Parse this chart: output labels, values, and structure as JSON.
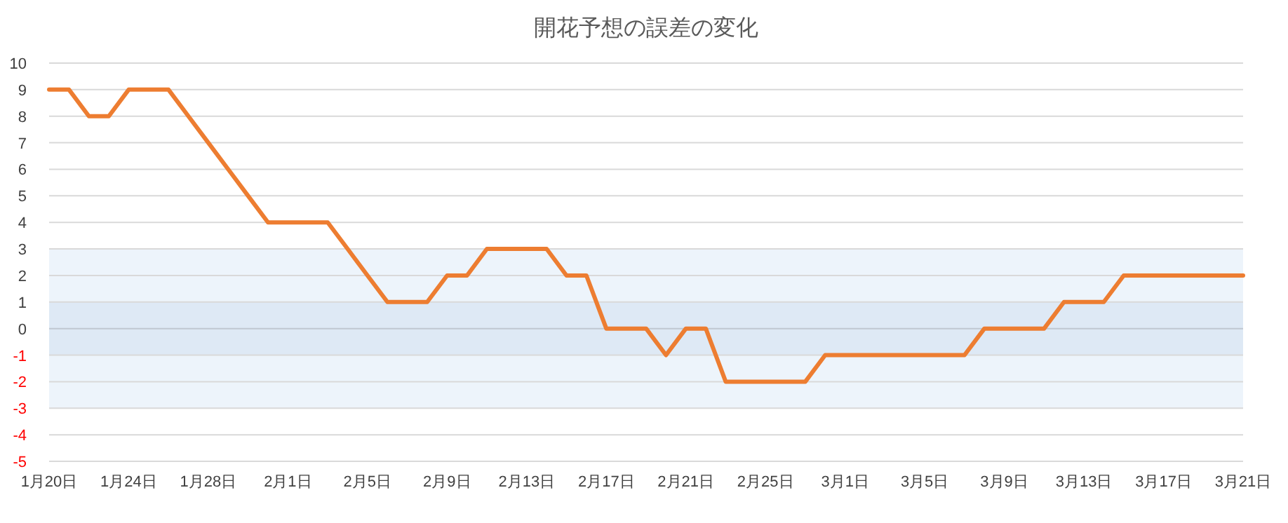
{
  "chart_data": {
    "type": "line",
    "title": "開花予想の誤差の変化",
    "x": [
      "--01-20",
      "--01-21",
      "--01-22",
      "--01-23",
      "--01-24",
      "--01-25",
      "--01-26",
      "--01-27",
      "--01-28",
      "--01-29",
      "--01-30",
      "--01-31",
      "--02-01",
      "--02-02",
      "--02-03",
      "--02-04",
      "--02-05",
      "--02-06",
      "--02-07",
      "--02-08",
      "--02-09",
      "--02-10",
      "--02-11",
      "--02-12",
      "--02-13",
      "--02-14",
      "--02-15",
      "--02-16",
      "--02-17",
      "--02-18",
      "--02-19",
      "--02-20",
      "--02-21",
      "--02-22",
      "--02-23",
      "--02-24",
      "--02-25",
      "--02-26",
      "--02-27",
      "--02-28",
      "--03-01",
      "--03-02",
      "--03-03",
      "--03-04",
      "--03-05",
      "--03-06",
      "--03-07",
      "--03-08",
      "--03-09",
      "--03-10",
      "--03-11",
      "--03-12",
      "--03-13",
      "--03-14",
      "--03-15",
      "--03-16",
      "--03-17",
      "--03-18",
      "--03-19",
      "--03-20",
      "--03-21"
    ],
    "series": [
      {
        "color": "#ed7d31",
        "values": [
          9,
          9,
          8,
          8,
          9,
          9,
          9,
          8,
          7,
          6,
          5,
          4,
          4,
          4,
          4,
          3,
          2,
          1,
          1,
          1,
          2,
          2,
          3,
          3,
          3,
          3,
          2,
          2,
          0,
          0,
          0,
          -1,
          0,
          0,
          -2,
          -2,
          -2,
          -2,
          -2,
          -1,
          -1,
          -1,
          -1,
          -1,
          -1,
          -1,
          -1,
          0,
          0,
          0,
          0,
          1,
          1,
          1,
          2,
          2,
          2,
          2,
          2,
          2,
          2
        ]
      }
    ],
    "xlim": [
      "--01-20",
      "--03-21"
    ],
    "xticks": [
      {
        "value": "--01-20",
        "label": "1月20日"
      },
      {
        "value": "--01-24",
        "label": "1月24日"
      },
      {
        "value": "--01-28",
        "label": "1月28日"
      },
      {
        "value": "--02-01",
        "label": "2月1日"
      },
      {
        "value": "--02-05",
        "label": "2月5日"
      },
      {
        "value": "--02-09",
        "label": "2月9日"
      },
      {
        "value": "--02-13",
        "label": "2月13日"
      },
      {
        "value": "--02-17",
        "label": "2月17日"
      },
      {
        "value": "--02-21",
        "label": "2月21日"
      },
      {
        "value": "--02-25",
        "label": "2月25日"
      },
      {
        "value": "--03-01",
        "label": "3月1日"
      },
      {
        "value": "--03-05",
        "label": "3月5日"
      },
      {
        "value": "--03-09",
        "label": "3月9日"
      },
      {
        "value": "--03-13",
        "label": "3月13日"
      },
      {
        "value": "--03-17",
        "label": "3月17日"
      },
      {
        "value": "--03-21",
        "label": "3月21日"
      }
    ],
    "ylim": [
      -5,
      10
    ],
    "yticks": [
      -5,
      -4,
      -3,
      -2,
      -1,
      0,
      1,
      2,
      3,
      4,
      5,
      6,
      7,
      8,
      9,
      10
    ],
    "bands": [
      {
        "axis": "y",
        "from": -3,
        "to": 3,
        "color": "#edf4fb"
      },
      {
        "axis": "y",
        "from": -1,
        "to": 1,
        "color": "#dee9f5"
      }
    ],
    "grid": "y",
    "line_style": "solid"
  }
}
